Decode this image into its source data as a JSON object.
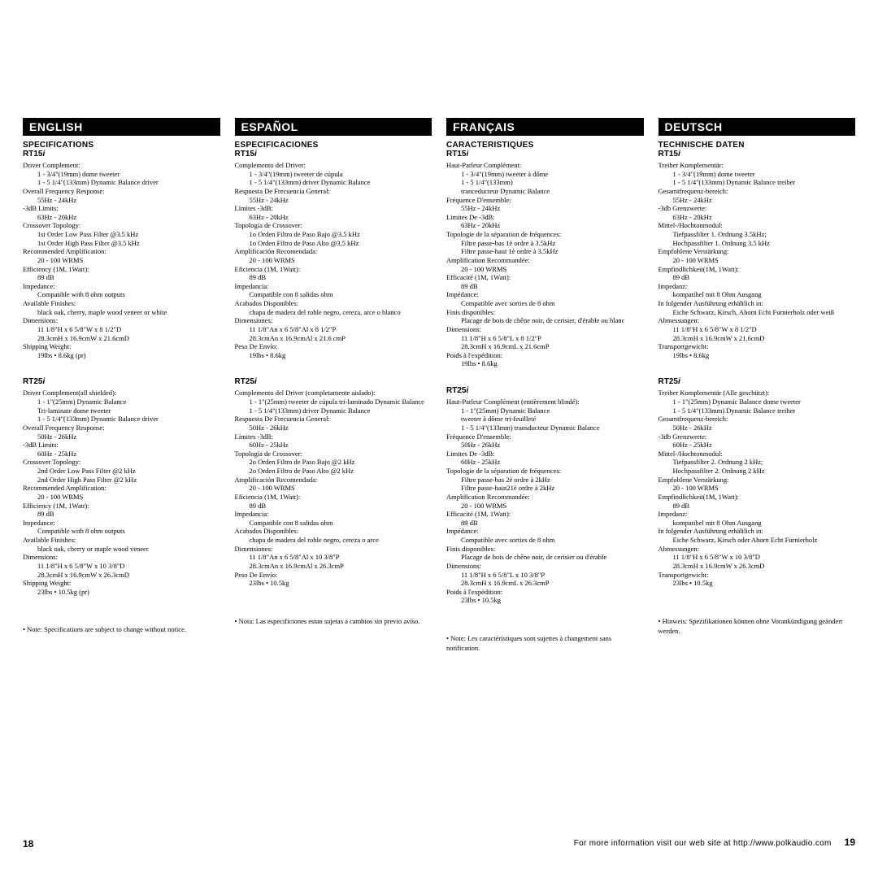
{
  "langs": [
    {
      "header": "ENGLISH",
      "sections": [
        {
          "title": "SPECIFICATIONS",
          "model": "RT15",
          "items": [
            {
              "label": "Driver Complement:",
              "vals": [
                "1 - 3/4\"(19mm) dome tweeter",
                "1 - 5 1/4\"(133mm) Dynamic Balance driver"
              ]
            },
            {
              "label": "Overall Frequency Response:",
              "vals": [
                "55Hz - 24kHz"
              ]
            },
            {
              "label": "-3dB Limits:",
              "vals": [
                "63Hz - 20kHz"
              ]
            },
            {
              "label": "Crossover Topology:",
              "vals": [
                "1st Order Low Pass Filter @3.5 kHz",
                "1st Order High Pass Filter @3.5 kHz"
              ]
            },
            {
              "label": "Recommended Amplification:",
              "vals": [
                "20 - 100 WRMS"
              ]
            },
            {
              "label": "Efficiency (1M, 1Watt):",
              "vals": [
                "89 dB"
              ]
            },
            {
              "label": "Impedance:",
              "vals": [
                "Compatible with 8 ohm outputs"
              ]
            },
            {
              "label": "Available Finishes:",
              "vals": [
                "black oak, cherry, maple wood veneer or white"
              ]
            },
            {
              "label": "Dimensions:",
              "vals": [
                "11 1/8\"H x 6 5/8\"W x 8 1/2\"D",
                "28.3cmH x 16.9cmW x 21.6cmD"
              ]
            },
            {
              "label": "Shipping Weight:",
              "vals": [
                "19lbs • 8.6kg (pr)"
              ]
            }
          ]
        },
        {
          "title": "",
          "model": "RT25",
          "items": [
            {
              "label": "Driver Complement(all shielded):",
              "vals": [
                "1 - 1\"(25mm) Dynamic Balance",
                "Tri-laminate dome tweeter",
                "1 - 5 1/4\"(133mm) Dynamic Balance driver"
              ]
            },
            {
              "label": "Overall Frequency Response:",
              "vals": [
                "50Hz - 26kHz"
              ]
            },
            {
              "label": "-3dB Limits:",
              "vals": [
                "60Hz - 25kHz"
              ]
            },
            {
              "label": "Crossover Topology:",
              "vals": [
                "2nd Order Low Pass Filter @2 kHz",
                "2nd Order High Pass Filter @2 kHz"
              ]
            },
            {
              "label": "Recommended Amplification:",
              "vals": [
                "20 - 100 WRMS"
              ]
            },
            {
              "label": "Efficiency (1M, 1Watt):",
              "vals": [
                "89 dB"
              ]
            },
            {
              "label": "Impedance:",
              "vals": [
                "Compatible with 8 ohm outputs"
              ]
            },
            {
              "label": "Available Finishes:",
              "vals": [
                "black oak, cherry or maple wood veneer"
              ]
            },
            {
              "label": "Dimensions:",
              "vals": [
                "11 1/8\"H x 6 5/8\"W x 10 3/8\"D",
                "28.3cmH x 16.9cmW x 26.3cmD"
              ]
            },
            {
              "label": "Shipping Weight:",
              "vals": [
                "23lbs • 10.5kg (pr)"
              ]
            }
          ]
        }
      ],
      "note": "• Note: Specifications are subject to change without notice."
    },
    {
      "header": "ESPAÑOL",
      "sections": [
        {
          "title": "ESPECIFICACIONES",
          "model": "RT15",
          "items": [
            {
              "label": "Complemento del Driver:",
              "vals": [
                "1 - 3/4\"(19mm) tweeter de cúpula",
                "1 - 5 1/4\"(133mm) driver Dynamic Balance"
              ]
            },
            {
              "label": "Respuesta De Frecuencia General:",
              "vals": [
                "55Hz - 24kHz"
              ]
            },
            {
              "label": "Límites -3dB:",
              "vals": [
                "63Hz - 20kHz"
              ]
            },
            {
              "label": "Topología de Crossover:",
              "vals": [
                "1o Orden Filtro de Paso Bajo @3.5 kHz",
                "1o Orden Filtro de Paso Alto @3.5 kHz"
              ]
            },
            {
              "label": "Amplificación Recomendada:",
              "vals": [
                "20 - 100 WRMS"
              ]
            },
            {
              "label": "Eficiencia (1M, 1Watt):",
              "vals": [
                "89 dB"
              ]
            },
            {
              "label": "Impedancia:",
              "vals": [
                "Compatible con 8 salidas ohm"
              ]
            },
            {
              "label": "Acabados Disponibles:",
              "vals": [
                "chapa de madera del roble negro, cereza, arce o blanco"
              ]
            },
            {
              "label": "Dimensiones:",
              "vals": [
                "11 1/8\"An x 6 5/8\"Al x 8 1/2\"P",
                "28.3cmAn x 16.9cmAl x 21.6 cmP"
              ]
            },
            {
              "label": "Peso De Envío:",
              "vals": [
                "19lbs • 8.6kg"
              ]
            }
          ]
        },
        {
          "title": "",
          "model": "RT25",
          "items": [
            {
              "label": "Complemento del Driver (completamente aislado):",
              "vals": [
                "1 - 1\"(25mm) tweeter de cúpula tri-laminado Dynamic Balance",
                "1 - 5 1/4\"(133mm) driver Dynamic Balance"
              ]
            },
            {
              "label": "Respuesta De Frecuencia General:",
              "vals": [
                "50Hz - 26kHz"
              ]
            },
            {
              "label": "Límites -3dB:",
              "vals": [
                "60Hz - 25kHz"
              ]
            },
            {
              "label": "Topología de Crossover:",
              "vals": [
                "2o Orden Filtro de Paso Bajo @2 kHz",
                "2o Orden Filtro de Paso Alto @2 kHz"
              ]
            },
            {
              "label": "Amplificación Recomendada:",
              "vals": [
                "20 - 100 WRMS"
              ]
            },
            {
              "label": "Eficiencia (1M, 1Watt):",
              "vals": [
                "89 dB"
              ]
            },
            {
              "label": "Impedancia:",
              "vals": [
                "Compatible con 8 salidas ohm"
              ]
            },
            {
              "label": "Acabados Disponibles:",
              "vals": [
                "chapa de madera del roble negro, cereza o arce"
              ]
            },
            {
              "label": "Dimensiones:",
              "vals": [
                "11 1/8\"An x 6 5/8\"Al x 10 3/8\"P",
                "28.3cmAn x 16.9cmAl x 26.3cmP"
              ]
            },
            {
              "label": "Peso De Envío:",
              "vals": [
                "23lbs • 10.5kg"
              ]
            }
          ]
        }
      ],
      "note": "• Nota: Las especificiones estan sujetas a cambios sin previo aviso."
    },
    {
      "header": "FRANÇAIS",
      "sections": [
        {
          "title": "CARACTERISTIQUES",
          "model": "RT15",
          "items": [
            {
              "label": "Haut-Parleur Complément:",
              "vals": [
                "1 - 3/4\"(19mm) tweeter à dôme",
                "1 - 5 1/4\"(133mm)",
                "tranceducteur Dynamic Balance"
              ]
            },
            {
              "label": "Fréquence D'ensemble:",
              "vals": [
                "55Hz - 24kHz"
              ]
            },
            {
              "label": "Limites De -3dB:",
              "vals": [
                "63Hz - 20kHz"
              ]
            },
            {
              "label": "Topologie de la séparation de fréquences:",
              "vals": [
                "Filtre passe-bas 1è ordre à 3.5kHz",
                "Filtre passe-haut 1è ordre à 3.5kHz"
              ]
            },
            {
              "label": "Amplification Recommandée:",
              "vals": [
                "20 - 100 WRMS"
              ]
            },
            {
              "label": "Efficacité (1M, 1Watt):",
              "vals": [
                "89 dB"
              ]
            },
            {
              "label": "Impédance:",
              "vals": [
                "Compatible avec sorties de 8 ohm"
              ]
            },
            {
              "label": "Finis disponibles:",
              "vals": [
                "Placage de bois de chêne noir, de cerisier, d'érable ou blanc"
              ]
            },
            {
              "label": "Dimensions:",
              "vals": [
                "11 1/8\"H x 6 5/8\"L x 8 1/2\"P",
                "28.3cmH x 16.9cmL x 21.6cmP"
              ]
            },
            {
              "label": "Poids à l'expédition:",
              "vals": [
                "19lbs • 8.6kg"
              ]
            }
          ]
        },
        {
          "title": "",
          "model": "RT25",
          "items": [
            {
              "label": "Haut-Parleur Complément (entièrement blindé):",
              "vals": [
                "1 - 1\"(25mm) Dynamic Balance",
                "tweeter à dôme tri-feuilleté",
                "1 - 5 1/4\"(133mm) transducteur Dynamic Balance"
              ]
            },
            {
              "label": "Fréquence D'ensemble:",
              "vals": [
                "50Hz - 26kHz"
              ]
            },
            {
              "label": "Limites De -3dB:",
              "vals": [
                "60Hz - 25kHz"
              ]
            },
            {
              "label": "Topologie de la séparation de fréquences:",
              "vals": [
                "Filtre passe-bas 2è ordre à 2kHz",
                "Filtre passe-haut21è ordre à 2kHz"
              ]
            },
            {
              "label": "Amplification Recommandée:",
              "vals": [
                "20 - 100 WRMS"
              ]
            },
            {
              "label": "Efficacité (1M, 1Watt):",
              "vals": [
                "89 dB"
              ]
            },
            {
              "label": "Impédance:",
              "vals": [
                "Compatible avec sorties de 8 ohm"
              ]
            },
            {
              "label": "Finis disponibles:",
              "vals": [
                "Placage de bois de chêne noir, de cerisier ou d'érable"
              ]
            },
            {
              "label": "Dimensions:",
              "vals": [
                "11 1/8\"H x 6 5/8\"L x 10 3/8\"P",
                "28.3cmH x 16.9cmL x 26.3cmP"
              ]
            },
            {
              "label": "Poids à l'expédition:",
              "vals": [
                "23lbs • 10.5kg"
              ]
            }
          ]
        }
      ],
      "note": "• Note: Les caractéristiques sont sujettes à changement sans notification."
    },
    {
      "header": "DEUTSCH",
      "sections": [
        {
          "title": "TECHNISCHE DATEN",
          "model": "RT15",
          "items": [
            {
              "label": "Treiber Komplementär:",
              "vals": [
                "1 - 3/4\"(19mm) dome tweeter",
                "1 - 5 1/4\"(133mm) Dynamic Balance treiber"
              ]
            },
            {
              "label": "Gesamtfrequenz-bereich:",
              "vals": [
                "55Hz - 24kHz"
              ]
            },
            {
              "label": "-3db Grenzwerte:",
              "vals": [
                "63Hz - 20kHz"
              ]
            },
            {
              "label": "Mittel-/Hochtonmodul:",
              "vals": [
                "Tiefpassfilter 1. Ordnung 3.5kHz;",
                "Hochpassfilter 1. Ordnung 3.5 kHz"
              ]
            },
            {
              "label": "Empfohlene Verstärkung:",
              "vals": [
                "20 - 100 WRMS"
              ]
            },
            {
              "label": "Empfindlichkeit(1M, 1Watt):",
              "vals": [
                "89 dB"
              ]
            },
            {
              "label": "Impedanz:",
              "vals": [
                "kompatibel mit 8 Ohm Ausgang"
              ]
            },
            {
              "label": "In folgender Ausführung erhältlich in:",
              "vals": [
                "Eiche Schwarz, Kirsch, Ahorn Echt Furnierholz oder weiß"
              ]
            },
            {
              "label": "Abmessungen:",
              "vals": [
                "11 1/8\"H x 6 5/8\"W x 8 1/2\"D",
                "28.3cmH x 16.9cmW x 21.6cmD"
              ]
            },
            {
              "label": "Transportgewicht:",
              "vals": [
                "19lbs • 8.6kg"
              ]
            }
          ]
        },
        {
          "title": "",
          "model": "RT25",
          "items": [
            {
              "label": "Treiber Komplementär (Alle geschützt):",
              "vals": [
                "1 - 1\"(25mm) Dynamic Balance dome tweeter",
                "1 - 5 1/4\"(133mm) Dynamic Balance treiber"
              ]
            },
            {
              "label": "Gesamtfrequenz-bereich:",
              "vals": [
                "50Hz - 26kHz"
              ]
            },
            {
              "label": "-3db Grenzwerte:",
              "vals": [
                "60Hz - 25kHz"
              ]
            },
            {
              "label": "Mittel-/Hochtonmodul:",
              "vals": [
                "Tiefpassfilter 2. Ordnung 2 kHz;",
                "Hochpassfilter 2. Ordnung 2 kHz"
              ]
            },
            {
              "label": "Empfohlene Verstärkung:",
              "vals": [
                "20 - 100 WRMS"
              ]
            },
            {
              "label": "Empfindlichkeit(1M, 1Watt):",
              "vals": [
                "89 dB"
              ]
            },
            {
              "label": "Impedanz:",
              "vals": [
                "kompatibel mit 8 Ohm Ausgang"
              ]
            },
            {
              "label": "In folgender Ausführung erhältlich in:",
              "vals": [
                "Eiche Schwarz, Kirsch oder Ahorn Echt Furnierholz"
              ]
            },
            {
              "label": "Abmessungen:",
              "vals": [
                "11 1/8\"H x 6 5/8\"W x 10 3/8\"D",
                "28.3cmH x 16.9cmW x 26.3cmD"
              ]
            },
            {
              "label": "Transportgewicht:",
              "vals": [
                "23lbs • 10.5kg"
              ]
            }
          ]
        }
      ],
      "note": "• Hinweis: Spezifikationen können ohne Vorankündigung geändert werden."
    }
  ],
  "footer": {
    "page_left": "18",
    "page_right": "19",
    "web": "For more information visit our web site at http://www.polkaudio.com"
  }
}
